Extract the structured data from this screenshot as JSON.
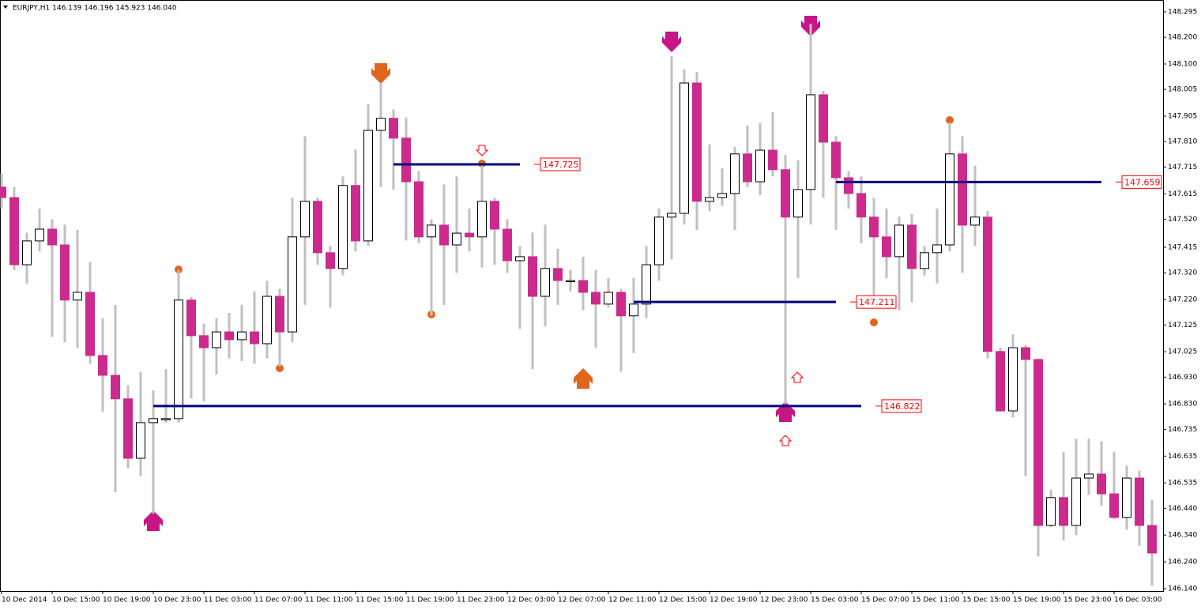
{
  "chart_data": {
    "type": "candlestick",
    "title": "EURJPY,H1  146.139 146.196 145.923 146.040",
    "categories": [
      "10 Dec 2014",
      null,
      null,
      null,
      "10 Dec 15:00",
      null,
      null,
      null,
      "10 Dec 19:00",
      null,
      null,
      null,
      "10 Dec 23:00",
      null,
      null,
      null,
      "11 Dec 03:00",
      null,
      null,
      null,
      "11 Dec 07:00",
      null,
      null,
      null,
      "11 Dec 11:00",
      null,
      null,
      null,
      "11 Dec 15:00",
      null,
      null,
      null,
      "11 Dec 19:00",
      null,
      null,
      null,
      "11 Dec 23:00",
      null,
      null,
      null,
      "12 Dec 03:00",
      null,
      null,
      null,
      "12 Dec 07:00",
      null,
      null,
      null,
      "12 Dec 11:00",
      null,
      null,
      null,
      "12 Dec 15:00",
      null,
      null,
      null,
      "12 Dec 19:00",
      null,
      null,
      null,
      "12 Dec 23:00",
      null,
      null,
      null,
      "15 Dec 03:00",
      null,
      null,
      null,
      "15 Dec 07:00",
      null,
      null,
      null,
      "15 Dec 11:00",
      null,
      null,
      null,
      "15 Dec 15:00",
      null,
      null,
      null,
      "15 Dec 19:00",
      null,
      null,
      null,
      "15 Dec 23:00",
      null,
      null,
      null,
      "16 Dec 03:00",
      null,
      null,
      null
    ],
    "open": [
      147.64,
      147.601,
      147.35,
      147.439,
      147.483,
      147.424,
      147.218,
      147.247,
      147.011,
      146.937,
      146.849,
      146.627,
      146.76,
      146.775,
      146.775,
      147.218,
      147.085,
      147.04,
      147.099,
      147.07,
      147.099,
      147.055,
      147.232,
      147.099,
      147.454,
      147.587,
      147.395,
      147.336,
      147.646,
      147.439,
      147.852,
      147.897,
      147.823,
      147.66,
      147.454,
      147.498,
      147.424,
      147.468,
      147.454,
      147.587,
      147.483,
      147.365,
      147.38,
      147.232,
      147.336,
      147.291,
      147.291,
      147.247,
      147.203,
      147.247,
      147.159,
      147.203,
      147.35,
      147.528,
      147.542,
      148.029,
      147.587,
      147.601,
      147.616,
      147.764,
      147.66,
      147.778,
      147.705,
      147.528,
      147.631,
      147.985,
      147.808,
      147.675,
      147.616,
      147.528,
      147.454,
      147.38,
      147.498,
      147.336,
      147.395,
      147.424,
      147.764,
      147.498,
      147.528,
      147.026,
      146.804,
      147.04,
      146.996,
      146.376,
      146.48,
      146.376,
      146.553,
      146.568,
      146.494,
      146.406,
      146.553,
      146.376
    ],
    "high": [
      147.69,
      147.64,
      147.47,
      147.56,
      147.52,
      147.5,
      147.48,
      147.36,
      147.15,
      147.2,
      146.9,
      146.95,
      146.88,
      146.96,
      147.33,
      147.23,
      147.13,
      147.15,
      147.17,
      147.2,
      147.25,
      147.29,
      147.26,
      147.6,
      147.83,
      147.6,
      147.42,
      147.68,
      147.78,
      147.95,
      148.03,
      147.93,
      147.9,
      147.7,
      147.52,
      147.65,
      147.68,
      147.56,
      147.73,
      147.6,
      147.52,
      147.42,
      147.47,
      147.5,
      147.41,
      147.33,
      147.38,
      147.33,
      147.3,
      147.26,
      147.3,
      147.42,
      147.56,
      148.13,
      148.08,
      148.07,
      147.8,
      147.71,
      147.79,
      147.87,
      147.88,
      147.92,
      147.76,
      147.74,
      148.25,
      148.0,
      147.83,
      147.7,
      147.68,
      147.6,
      147.56,
      147.53,
      147.54,
      147.42,
      147.56,
      147.88,
      147.83,
      147.72,
      147.55,
      147.04,
      147.09,
      147.05,
      147.0,
      146.51,
      146.65,
      146.7,
      146.7,
      146.69,
      146.65,
      146.6,
      146.58,
      146.47
    ],
    "low": [
      147.56,
      147.33,
      147.28,
      147.4,
      147.08,
      147.06,
      147.04,
      146.98,
      146.8,
      146.5,
      146.59,
      146.56,
      146.42,
      146.76,
      146.76,
      146.85,
      146.84,
      146.94,
      147.0,
      146.99,
      146.98,
      147.0,
      146.97,
      147.06,
      147.2,
      147.35,
      147.19,
      147.31,
      147.4,
      147.42,
      147.64,
      147.63,
      147.44,
      147.43,
      147.16,
      147.2,
      147.32,
      147.4,
      147.34,
      147.35,
      147.32,
      147.11,
      146.96,
      147.12,
      147.2,
      147.25,
      147.18,
      147.04,
      147.19,
      146.95,
      147.02,
      147.15,
      147.29,
      147.37,
      147.5,
      147.48,
      147.55,
      147.57,
      147.48,
      147.64,
      147.61,
      147.68,
      146.83,
      147.3,
      147.5,
      147.6,
      147.48,
      147.56,
      147.43,
      147.2,
      147.3,
      147.18,
      147.21,
      147.31,
      147.28,
      147.4,
      147.32,
      147.42,
      147.0,
      146.8,
      146.78,
      146.56,
      146.26,
      146.37,
      146.32,
      146.34,
      146.49,
      146.45,
      146.4,
      146.36,
      146.3,
      146.15
    ],
    "close": [
      147.601,
      147.35,
      147.439,
      147.483,
      147.424,
      147.218,
      147.247,
      147.011,
      146.937,
      146.849,
      146.627,
      146.76,
      146.775,
      146.775,
      147.218,
      147.085,
      147.04,
      147.099,
      147.07,
      147.099,
      147.055,
      147.232,
      147.099,
      147.454,
      147.587,
      147.395,
      147.336,
      147.646,
      147.439,
      147.852,
      147.897,
      147.823,
      147.66,
      147.454,
      147.498,
      147.424,
      147.468,
      147.454,
      147.587,
      147.483,
      147.365,
      147.38,
      147.232,
      147.336,
      147.291,
      147.291,
      147.247,
      147.203,
      147.247,
      147.159,
      147.203,
      147.35,
      147.528,
      147.542,
      148.029,
      147.587,
      147.601,
      147.616,
      147.764,
      147.66,
      147.778,
      147.705,
      147.528,
      147.631,
      147.985,
      147.808,
      147.675,
      147.616,
      147.528,
      147.454,
      147.38,
      147.498,
      147.336,
      147.395,
      147.424,
      147.764,
      147.498,
      147.528,
      147.026,
      146.804,
      147.04,
      146.996,
      146.376,
      146.48,
      146.376,
      146.553,
      146.568,
      146.494,
      146.406,
      146.553,
      146.376,
      146.273
    ],
    "up_color": "#ffffff",
    "down_color": "#cc2a8c",
    "wick_color": "#c0c0c0",
    "level_color": "#000080",
    "label_color": "#ff0000",
    "levels": [
      {
        "value": 147.725,
        "start": 31,
        "end": 41
      },
      {
        "value": 147.659,
        "start": 66,
        "end": 87
      },
      {
        "value": 147.211,
        "start": 50,
        "end": 66
      },
      {
        "value": 146.822,
        "start": 12,
        "end": 68
      }
    ],
    "ylim": [
      146.131,
      148.339
    ],
    "yticks": [
      148.295,
      {
        "value": 148.2,
        "label": "148.200"
      },
      {
        "value": 148.1,
        "label": "148.100"
      },
      148.005,
      147.905,
      {
        "value": 147.81,
        "label": "147.810"
      },
      147.715,
      147.615,
      {
        "value": 147.52,
        "label": "147.520"
      },
      147.415,
      {
        "value": 147.32,
        "label": "147.320"
      },
      {
        "value": 147.22,
        "label": "147.220"
      },
      147.125,
      147.025,
      {
        "value": 146.93,
        "label": "146.930"
      },
      {
        "value": 146.83,
        "label": "146.830"
      },
      146.735,
      146.635,
      146.535,
      {
        "value": 146.44,
        "label": "146.440"
      },
      {
        "value": 146.34,
        "label": "146.340"
      },
      {
        "value": 146.24,
        "label": "146.240"
      },
      {
        "value": 146.14,
        "label": "146.140"
      }
    ]
  }
}
